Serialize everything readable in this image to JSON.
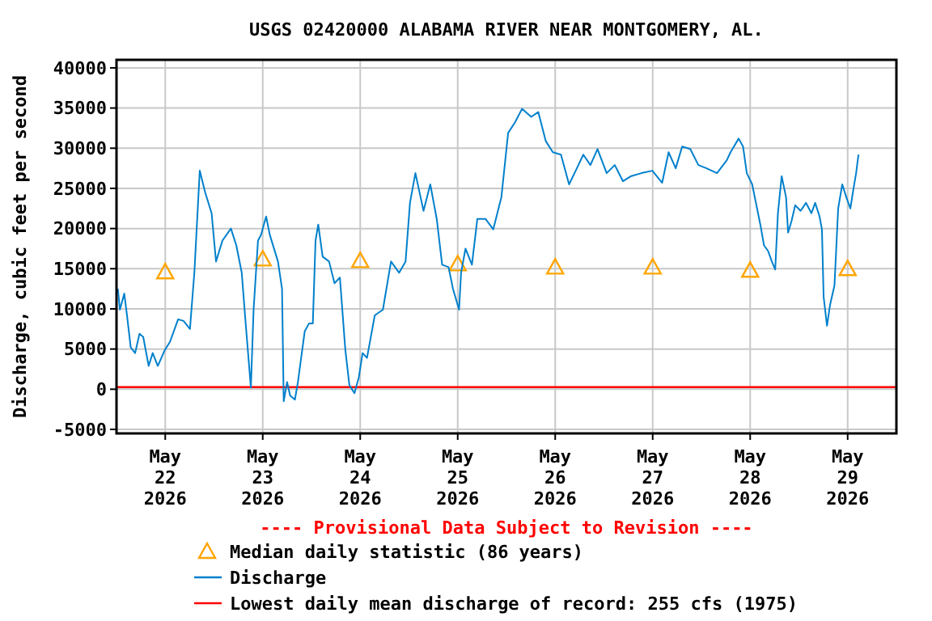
{
  "chart_data": {
    "type": "line",
    "title": "USGS 02420000 ALABAMA RIVER NEAR MONTGOMERY, AL.",
    "ylabel": "Discharge, cubic feet per second",
    "annotations": [
      "---- Provisional Data Subject to Revision ----"
    ],
    "xlim": [
      "2026-05-21T12:00",
      "2026-05-29T12:00"
    ],
    "xticks": [
      {
        "value": "2026-05-22T00:00",
        "label": "May 22 2026"
      },
      {
        "value": "2026-05-23T00:00",
        "label": "May 23 2026"
      },
      {
        "value": "2026-05-24T00:00",
        "label": "May 24 2026"
      },
      {
        "value": "2026-05-25T00:00",
        "label": "May 25 2026"
      },
      {
        "value": "2026-05-26T00:00",
        "label": "May 26 2026"
      },
      {
        "value": "2026-05-27T00:00",
        "label": "May 27 2026"
      },
      {
        "value": "2026-05-28T00:00",
        "label": "May 28 2026"
      },
      {
        "value": "2026-05-29T00:00",
        "label": "May 29 2026"
      }
    ],
    "ylim": [
      -5500,
      41000
    ],
    "yticks": [
      -5000,
      0,
      5000,
      10000,
      15000,
      20000,
      25000,
      30000,
      35000,
      40000
    ],
    "grid": true,
    "legend": "bottom",
    "series": [
      {
        "name": "Median daily statistic (86 years)",
        "type": "scatter",
        "marker": "triangle",
        "color": "#ffa500",
        "x": [
          "2026-05-22T00:00",
          "2026-05-23T00:00",
          "2026-05-24T00:00",
          "2026-05-25T00:00",
          "2026-05-26T00:00",
          "2026-05-27T00:00",
          "2026-05-28T00:00",
          "2026-05-29T00:00"
        ],
        "values": [
          14600,
          16200,
          16000,
          15600,
          15200,
          15200,
          14800,
          15000
        ]
      },
      {
        "name": "Discharge",
        "color": "#0080cc",
        "x": [
          "2026-05-21T12:20",
          "2026-05-21T12:50",
          "2026-05-21T13:55",
          "2026-05-21T14:35",
          "2026-05-21T15:30",
          "2026-05-21T16:35",
          "2026-05-21T17:40",
          "2026-05-21T18:35",
          "2026-05-21T19:55",
          "2026-05-21T20:55",
          "2026-05-21T22:10",
          "2026-05-21T23:55",
          "2026-05-22T01:10",
          "2026-05-22T03:10",
          "2026-05-22T04:30",
          "2026-05-22T06:05",
          "2026-05-22T07:10",
          "2026-05-22T08:30",
          "2026-05-22T09:50",
          "2026-05-22T11:25",
          "2026-05-22T12:30",
          "2026-05-22T14:05",
          "2026-05-22T16:10",
          "2026-05-22T17:30",
          "2026-05-22T18:50",
          "2026-05-22T19:45",
          "2026-05-22T21:05",
          "2026-05-22T21:45",
          "2026-05-22T22:50",
          "2026-05-22T23:35",
          "2026-05-23T00:50",
          "2026-05-23T01:45",
          "2026-05-23T03:45",
          "2026-05-23T04:45",
          "2026-05-23T05:10",
          "2026-05-23T06:00",
          "2026-05-23T06:45",
          "2026-05-23T07:55",
          "2026-05-23T08:40",
          "2026-05-23T10:20",
          "2026-05-23T11:25",
          "2026-05-23T12:20",
          "2026-05-23T13:00",
          "2026-05-23T13:40",
          "2026-05-23T14:45",
          "2026-05-23T16:20",
          "2026-05-23T17:40",
          "2026-05-23T19:00",
          "2026-05-23T20:20",
          "2026-05-23T21:20",
          "2026-05-23T22:35",
          "2026-05-23T23:40",
          "2026-05-24T00:35",
          "2026-05-24T01:40",
          "2026-05-24T03:35",
          "2026-05-24T05:35",
          "2026-05-24T07:35",
          "2026-05-24T09:35",
          "2026-05-24T11:10",
          "2026-05-24T12:15",
          "2026-05-24T13:35",
          "2026-05-24T15:35",
          "2026-05-24T17:15",
          "2026-05-24T18:50",
          "2026-05-24T20:10",
          "2026-05-24T21:45",
          "2026-05-24T22:50",
          "2026-05-25T00:20",
          "2026-05-25T00:50",
          "2026-05-25T01:55",
          "2026-05-25T03:30",
          "2026-05-25T04:50",
          "2026-05-25T06:50",
          "2026-05-25T08:45",
          "2026-05-25T10:45",
          "2026-05-25T12:25",
          "2026-05-25T14:05",
          "2026-05-25T15:50",
          "2026-05-25T18:05",
          "2026-05-25T19:50",
          "2026-05-25T21:40",
          "2026-05-25T23:25",
          "2026-05-26T01:25",
          "2026-05-26T03:25",
          "2026-05-26T05:20",
          "2026-05-26T06:55",
          "2026-05-26T08:40",
          "2026-05-26T10:25",
          "2026-05-26T12:40",
          "2026-05-26T14:40",
          "2026-05-26T16:40",
          "2026-05-26T18:35",
          "2026-05-26T21:15",
          "2026-05-26T23:55",
          "2026-05-27T02:20",
          "2026-05-27T03:55",
          "2026-05-27T05:40",
          "2026-05-27T07:15",
          "2026-05-27T09:15",
          "2026-05-27T11:15",
          "2026-05-27T13:15",
          "2026-05-27T15:50",
          "2026-05-27T18:15",
          "2026-05-27T19:10",
          "2026-05-27T21:10",
          "2026-05-27T22:15",
          "2026-05-27T23:10",
          "2026-05-28T00:30",
          "2026-05-28T01:25",
          "2026-05-28T02:30",
          "2026-05-28T03:25",
          "2026-05-28T04:25",
          "2026-05-28T05:20",
          "2026-05-28T06:10",
          "2026-05-28T06:50",
          "2026-05-28T07:45",
          "2026-05-28T08:50",
          "2026-05-28T09:20",
          "2026-05-28T10:10",
          "2026-05-28T11:05",
          "2026-05-28T12:25",
          "2026-05-28T13:45",
          "2026-05-28T15:05",
          "2026-05-28T16:00",
          "2026-05-28T17:05",
          "2026-05-28T17:40",
          "2026-05-28T18:05",
          "2026-05-28T18:55",
          "2026-05-28T19:40",
          "2026-05-28T20:45",
          "2026-05-28T21:40",
          "2026-05-28T22:40",
          "2026-05-28T23:40",
          "2026-05-29T00:40",
          "2026-05-29T01:25",
          "2026-05-29T02:05",
          "2026-05-29T02:40"
        ],
        "values": [
          12500,
          9900,
          11900,
          9200,
          5200,
          4500,
          6900,
          6500,
          2900,
          4500,
          2900,
          4900,
          5900,
          8700,
          8500,
          7500,
          14500,
          27200,
          24500,
          21900,
          15900,
          18500,
          20000,
          17900,
          14500,
          8500,
          200,
          9900,
          18500,
          19200,
          21500,
          19200,
          15900,
          12500,
          -1500,
          900,
          -800,
          -1300,
          900,
          7200,
          8200,
          8200,
          18500,
          20500,
          16500,
          15900,
          13200,
          13900,
          4900,
          500,
          -500,
          1500,
          4500,
          3900,
          9200,
          9900,
          15900,
          14500,
          15900,
          23200,
          26900,
          22200,
          25500,
          21200,
          15500,
          15200,
          12500,
          9900,
          14500,
          17500,
          15500,
          21200,
          21200,
          19900,
          23900,
          31900,
          33200,
          34900,
          33900,
          34500,
          30900,
          29500,
          29200,
          25500,
          27500,
          29200,
          27900,
          29900,
          26900,
          27900,
          25900,
          26500,
          26900,
          27200,
          25700,
          29500,
          27500,
          30200,
          29900,
          27900,
          27500,
          26900,
          28500,
          29500,
          31200,
          30200,
          26900,
          25500,
          23200,
          20500,
          17900,
          17200,
          15900,
          14900,
          21900,
          26500,
          23900,
          19500,
          20900,
          22900,
          22200,
          23200,
          21900,
          23200,
          21500,
          19900,
          11500,
          7900,
          10500,
          12900,
          22500,
          25500,
          23900,
          22500,
          24900,
          26900,
          29200
        ]
      }
    ],
    "ref_lines": [
      {
        "axis": "y",
        "value": 255,
        "label": "Lowest daily mean discharge of record: 255 cfs (1975)",
        "color": "#ff0000"
      }
    ]
  }
}
